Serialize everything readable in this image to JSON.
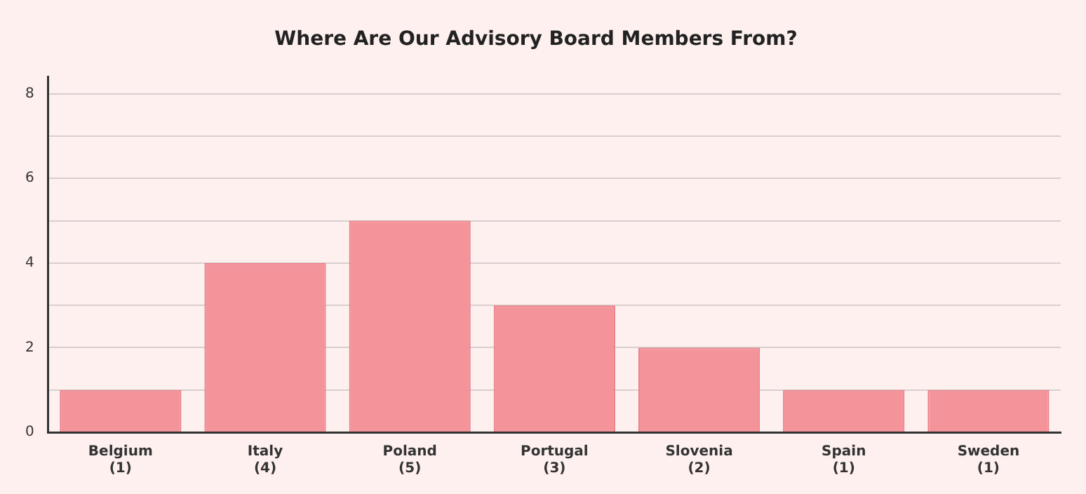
{
  "chart_data": {
    "type": "bar",
    "title": "Where Are Our Advisory Board Members From?",
    "categories": [
      "Belgium",
      "Italy",
      "Poland",
      "Portugal",
      "Slovenia",
      "Spain",
      "Sweden"
    ],
    "values": [
      1,
      4,
      5,
      3,
      2,
      1,
      1
    ],
    "value_labels": [
      "(1)",
      "(4)",
      "(5)",
      "(3)",
      "(2)",
      "(1)",
      "(1)"
    ],
    "color": "#f4949a",
    "ylim": [
      0,
      8.4
    ],
    "yticks": [
      0,
      {
        "value": 1,
        "label": null
      },
      2,
      {
        "value": 3,
        "label": null
      },
      4,
      {
        "value": 5,
        "label": null
      },
      6,
      {
        "value": 7,
        "label": null
      },
      8
    ],
    "grid": "y"
  }
}
